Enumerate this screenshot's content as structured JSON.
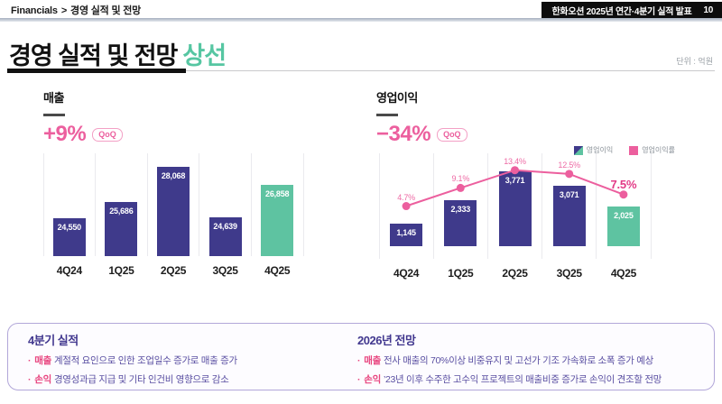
{
  "breadcrumb": {
    "section": "Financials",
    "separator": ">",
    "page_title": "경영 실적 및 전망"
  },
  "header_bar": {
    "title": "한화오션 2025년 연간·4분기 실적 발표",
    "page_number": "10"
  },
  "title": {
    "main": "경영 실적 및 전망",
    "highlight": "상선"
  },
  "unit_label": "단위 : 억원",
  "colors": {
    "bar_navy": "#3f3a8b",
    "bar_green": "#5ec3a1",
    "line_pink": "#ec5f9e",
    "accent_teal": "#56c6a2"
  },
  "charts": {
    "revenue": {
      "label": "매출",
      "change": "+9%",
      "change_badge": "QoQ"
    },
    "operating_profit": {
      "label": "영업이익",
      "change": "−34%",
      "change_badge": "QoQ",
      "legend": [
        {
          "label": "영업이익"
        },
        {
          "label": "영업이익률"
        }
      ]
    }
  },
  "chart_data": [
    {
      "type": "bar",
      "title": "매출",
      "categories": [
        "4Q24",
        "1Q25",
        "2Q25",
        "3Q25",
        "4Q25"
      ],
      "values": [
        24550,
        25686,
        28068,
        24639,
        26858
      ],
      "value_labels": [
        "24,550",
        "25,686",
        "28,068",
        "24,639",
        "26,858"
      ],
      "highlight_index": 4,
      "ylim": [
        22000,
        29000
      ],
      "grid": "vertical",
      "bar_color": "#3f3a8b",
      "highlight_color": "#5ec3a1"
    },
    {
      "type": "bar",
      "title": "영업이익",
      "categories": [
        "4Q24",
        "1Q25",
        "2Q25",
        "3Q25",
        "4Q25"
      ],
      "series": [
        {
          "name": "영업이익",
          "type": "bar",
          "values": [
            1145,
            2333,
            3771,
            3071,
            2025
          ],
          "value_labels": [
            "1,145",
            "2,333",
            "3,771",
            "3,071",
            "2,025"
          ]
        },
        {
          "name": "영업이익률",
          "type": "line",
          "values": [
            4.7,
            9.1,
            13.4,
            12.5,
            7.5
          ],
          "value_labels": [
            "4.7%",
            "9.1%",
            "13.4%",
            "12.5%",
            "7.5%"
          ]
        }
      ],
      "highlight_index": 4,
      "ylim": [
        0,
        4700
      ],
      "pct_ylim": [
        0,
        17.5
      ],
      "grid": "vertical",
      "legend_position": "top-right",
      "bar_color": "#3f3a8b",
      "highlight_color": "#5ec3a1",
      "line_color": "#ec5f9e"
    }
  ],
  "notes": {
    "left": {
      "title": "4분기 실적",
      "items": [
        {
          "keyword": "매출",
          "text": "계절적 요인으로 인한 조업일수 증가로 매출 증가"
        },
        {
          "keyword": "손익",
          "text": "경영성과급 지급 및 기타 인건비 영향으로 감소"
        }
      ]
    },
    "right": {
      "title": "2026년 전망",
      "items": [
        {
          "keyword": "매출",
          "text": "전사 매출의 70%이상 비중유지 및 고선가 기조 가속화로 소폭 증가 예상"
        },
        {
          "keyword": "손익",
          "text": "’23년 이후 수주한 고수익 프로젝트의 매출비중 증가로 손익이 견조할 전망"
        }
      ]
    }
  }
}
